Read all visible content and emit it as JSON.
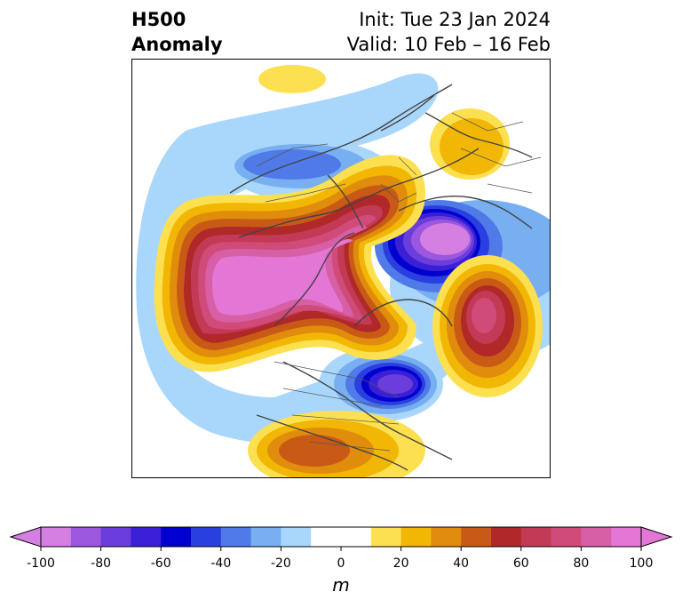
{
  "header": {
    "title_line1": "H500",
    "title_line2": "Anomaly",
    "init_text": "Init: Tue 23 Jan 2024",
    "valid_text": "Valid: 10 Feb – 16 Feb"
  },
  "colorbar": {
    "unit": "m",
    "ticks": [
      "-100",
      "-80",
      "-60",
      "-40",
      "-20",
      "0",
      "20",
      "40",
      "60",
      "80",
      "100"
    ],
    "colors": [
      "#d67fe3",
      "#9c57df",
      "#6b3ddd",
      "#3a1fd6",
      "#0000cf",
      "#2a3fdf",
      "#4f7ae8",
      "#78aff0",
      "#a9d7fb",
      "#ffffff",
      "#ffffff",
      "#fde050",
      "#f2b605",
      "#e08c0c",
      "#c85a16",
      "#b02828",
      "#c23a55",
      "#d04b7a",
      "#d75fa6",
      "#e476d5"
    ],
    "extend_min_color": "#d67fe3",
    "extend_max_color": "#e476d5"
  },
  "map": {
    "projection": "north-polar-stereographic",
    "field": "500 hPa geopotential height anomaly"
  }
}
